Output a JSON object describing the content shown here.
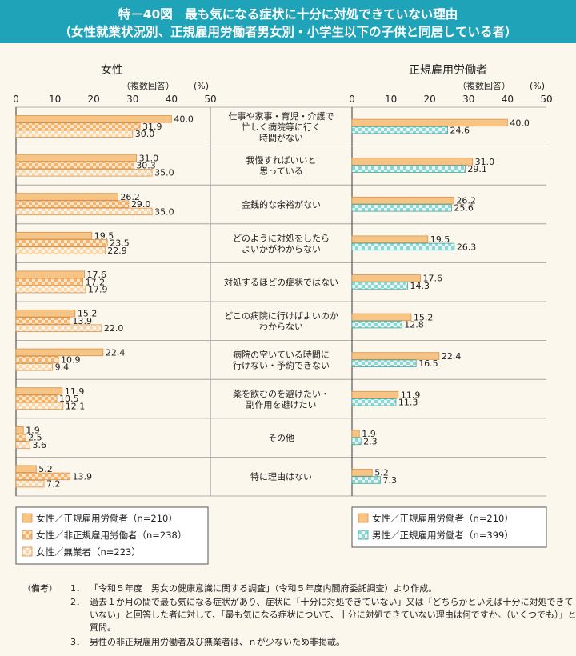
{
  "figure": {
    "title": "特－40図　最も気になる症状に十分に対処できていない理由",
    "subtitle": "（女性就業状況別、正規雇用労働者男女別・小学生以下の子供と同居している者）"
  },
  "notes": {
    "label": "（備考）",
    "items": [
      {
        "num": "1．",
        "text": "「令和５年度　男女の健康意識に関する調査」（令和５年度内閣府委託調査）より作成。"
      },
      {
        "num": "2．",
        "text": "過去１か月の間で最も気になる症状があり、症状に「十分に対処できていない」又は「どちらかといえば十分に対処できていない」と回答した者に対して、「最も気になる症状について、十分に対処できていない理由は何ですか。（いくつでも）」と質問。"
      },
      {
        "num": "3．",
        "text": "男性の非正規雇用労働者及び無業者は、ｎが少ないため非掲載。"
      }
    ]
  },
  "colors": {
    "header": "#1fa3b8",
    "bar_orange": "#f6c485",
    "bar_border": "#d9924a",
    "check_orange": "#f6b26b",
    "check_teal": "#6fc9c5",
    "teal_border": "#3fa8a4"
  },
  "chart_data": {
    "type": "bar",
    "orientation": "horizontal",
    "unit": "(%)",
    "note": "（複数回答）",
    "xlim": [
      0,
      50
    ],
    "ticks": [
      "0",
      "10",
      "20",
      "30",
      "40",
      "50"
    ],
    "categories": [
      "仕事や家事・育児・介護で忙しく病院等に行く時間がない",
      "我慢すればいいと思っている",
      "金銭的な余裕がない",
      "どのように対処をしたらよいかがわからない",
      "対処するほどの症状ではない",
      "どこの病院に行けばよいのかわからない",
      "病院の空いている時間に行けない・予約できない",
      "薬を飲むのを避けたい・副作用を避けたい",
      "その他",
      "特に理由はない"
    ],
    "category_lines": [
      [
        "仕事や家事・育児・介護で",
        "忙しく病院等に行く",
        "時間がない"
      ],
      [
        "我慢すればいいと",
        "思っている"
      ],
      [
        "金銭的な余裕がない"
      ],
      [
        "どのように対処をしたら",
        "よいかがわからない"
      ],
      [
        "対処するほどの症状ではない"
      ],
      [
        "どこの病院に行けばよいのか",
        "わからない"
      ],
      [
        "病院の空いている時間に",
        "行けない・予約できない"
      ],
      [
        "薬を飲むのを避けたい・",
        "副作用を避けたい"
      ],
      [
        "その他"
      ],
      [
        "特に理由はない"
      ]
    ],
    "left": {
      "title": "女性",
      "series": [
        {
          "name": "女性／正規雇用労働者（n=210）",
          "pattern": "solid-orange",
          "values": [
            40.0,
            31.0,
            26.2,
            19.5,
            17.6,
            15.2,
            22.4,
            11.9,
            1.9,
            5.2
          ],
          "labels": [
            "40.0",
            "31.0",
            "26.2",
            "19.5",
            "17.6",
            "15.2",
            "22.4",
            "11.9",
            "1.9",
            "5.2"
          ]
        },
        {
          "name": "女性／非正規雇用労働者（n=238）",
          "pattern": "check-orange",
          "values": [
            31.9,
            30.3,
            29.0,
            23.5,
            17.2,
            13.9,
            10.9,
            10.5,
            2.5,
            13.9
          ],
          "labels": [
            "31.9",
            "30.3",
            "29.0",
            "23.5",
            "17.2",
            "13.9",
            "10.9",
            "10.5",
            "2.5",
            "13.9"
          ]
        },
        {
          "name": "女性／無業者（n=223）",
          "pattern": "check-light",
          "values": [
            30.0,
            35.0,
            35.0,
            22.9,
            17.9,
            22.0,
            9.4,
            12.1,
            3.6,
            7.2
          ],
          "labels": [
            "30.0",
            "35.0",
            "35.0",
            "22.9",
            "17.9",
            "22.0",
            "9.4",
            "12.1",
            "3.6",
            "7.2"
          ]
        }
      ]
    },
    "right": {
      "title": "正規雇用労働者",
      "series": [
        {
          "name": "女性／正規雇用労働者（n=210）",
          "pattern": "solid-orange",
          "values": [
            40.0,
            31.0,
            26.2,
            19.5,
            17.6,
            15.2,
            22.4,
            11.9,
            1.9,
            5.2
          ],
          "labels": [
            "40.0",
            "31.0",
            "26.2",
            "19.5",
            "17.6",
            "15.2",
            "22.4",
            "11.9",
            "1.9",
            "5.2"
          ]
        },
        {
          "name": "男性／正規雇用労働者（n=399）",
          "pattern": "check-teal",
          "values": [
            24.6,
            29.1,
            25.6,
            26.3,
            14.3,
            12.8,
            16.5,
            11.3,
            2.3,
            7.3
          ],
          "labels": [
            "24.6",
            "29.1",
            "25.6",
            "26.3",
            "14.3",
            "12.8",
            "16.5",
            "11.3",
            "2.3",
            "7.3"
          ]
        }
      ]
    }
  }
}
